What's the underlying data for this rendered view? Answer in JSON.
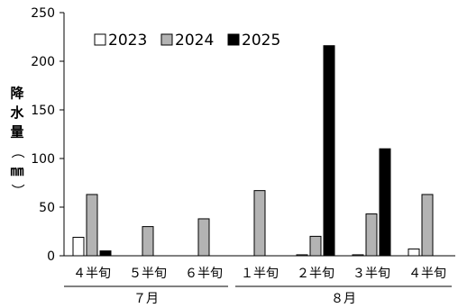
{
  "chart_data": {
    "type": "bar",
    "title": "",
    "ylabel": "降水量（㎜）",
    "ylim": [
      0,
      250
    ],
    "yticks": [
      "0",
      "50",
      "100",
      "150",
      "200",
      "250"
    ],
    "categories": [
      "４半旬",
      "５半旬",
      "６半旬",
      "１半旬",
      "２半旬",
      "３半旬",
      "４半旬"
    ],
    "groups": [
      {
        "label": "７月",
        "categories": 3
      },
      {
        "label": "８月",
        "categories": 4
      }
    ],
    "series": [
      {
        "name": "2023",
        "color": "#ffffff",
        "values": [
          19,
          0,
          0,
          0,
          1,
          1,
          7
        ]
      },
      {
        "name": "2024",
        "color": "#b3b3b3",
        "values": [
          63,
          30,
          38,
          67,
          20,
          43,
          63
        ]
      },
      {
        "name": "2025",
        "color": "#000000",
        "values": [
          5,
          0,
          0,
          0,
          216,
          110,
          0
        ]
      }
    ],
    "legend_position": "top-left",
    "grid": false
  }
}
